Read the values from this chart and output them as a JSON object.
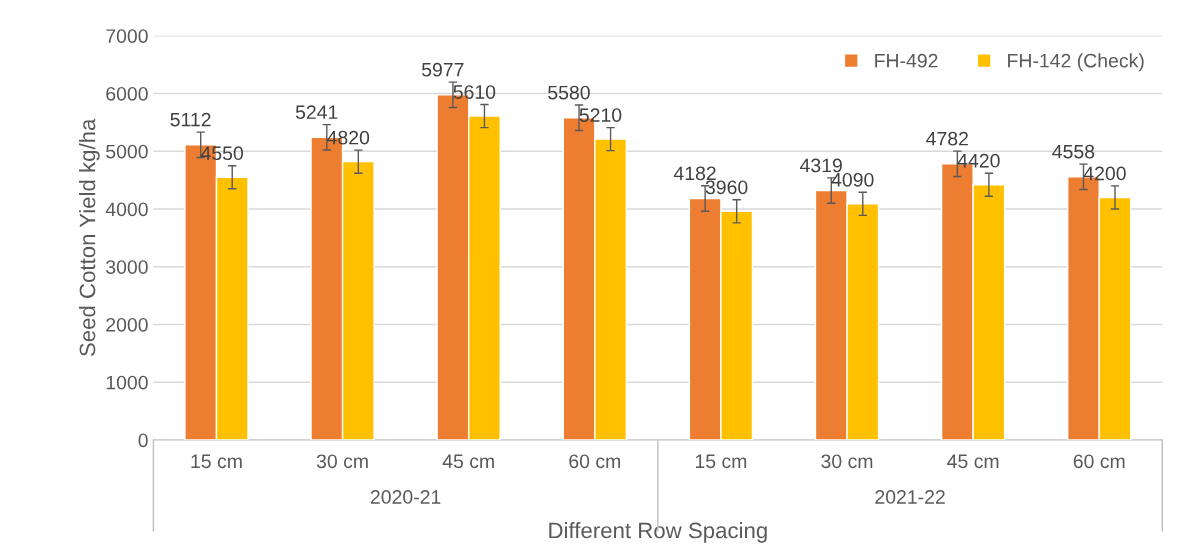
{
  "chart_data": {
    "type": "bar",
    "xlabel": "Different Row Spacing",
    "ylabel": "Seed Cotton Yield kg/ha",
    "categories": [
      "15 cm",
      "30 cm",
      "45 cm",
      "60 cm",
      "15 cm",
      "30 cm",
      "45 cm",
      "60 cm"
    ],
    "annotations": [
      "2020-21",
      "2021-22"
    ],
    "series": [
      {
        "name": "FH-492",
        "color": "#ed7d31",
        "values": [
          5112,
          5241,
          5977,
          5580,
          4182,
          4319,
          4782,
          4558
        ],
        "errors": [
          220,
          220,
          220,
          220,
          220,
          220,
          220,
          220
        ]
      },
      {
        "name": "FH-142 (Check)",
        "color": "#ffc000",
        "values": [
          4550,
          4820,
          5610,
          5210,
          3960,
          4090,
          4420,
          4200
        ],
        "errors": [
          200,
          200,
          200,
          200,
          200,
          200,
          200,
          200
        ]
      }
    ],
    "ylim": [
      0,
      7000
    ],
    "yticks": [
      0,
      1000,
      2000,
      3000,
      4000,
      5000,
      6000,
      7000
    ],
    "grid": "y",
    "legend": "top right",
    "data_labels": true
  }
}
